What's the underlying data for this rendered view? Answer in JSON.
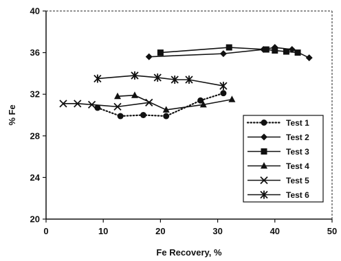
{
  "chart_data": {
    "type": "line",
    "title": "",
    "xlabel": "Fe Recovery, %",
    "ylabel": "% Fe",
    "xlim": [
      0,
      50
    ],
    "ylim": [
      20,
      40
    ],
    "xticks": [
      0,
      10,
      20,
      30,
      40,
      50
    ],
    "yticks": [
      20,
      24,
      28,
      32,
      36,
      40
    ],
    "grid": false,
    "legend_position": "bottom-right",
    "series": [
      {
        "name": "Test 1",
        "marker": "circle",
        "dash": "dotted",
        "color": "#111111",
        "x": [
          9,
          13,
          17,
          21,
          27,
          31
        ],
        "y": [
          30.7,
          29.9,
          30,
          29.9,
          31.4,
          32.1
        ]
      },
      {
        "name": "Test 2",
        "marker": "diamond",
        "dash": "solid",
        "color": "#111111",
        "x": [
          18,
          31,
          38,
          40,
          43,
          46
        ],
        "y": [
          35.6,
          35.9,
          36.3,
          36.5,
          36.3,
          35.5
        ]
      },
      {
        "name": "Test 3",
        "marker": "square",
        "dash": "solid",
        "color": "#111111",
        "x": [
          20,
          32,
          38.5,
          40,
          42,
          44
        ],
        "y": [
          36,
          36.5,
          36.3,
          36.2,
          36.1,
          36
        ]
      },
      {
        "name": "Test 4",
        "marker": "triangle",
        "dash": "solid",
        "color": "#111111",
        "x": [
          12.5,
          15.5,
          21,
          27.5,
          32.5
        ],
        "y": [
          31.8,
          31.9,
          30.5,
          31,
          31.5
        ]
      },
      {
        "name": "Test 5",
        "marker": "x",
        "dash": "solid",
        "color": "#111111",
        "x": [
          3,
          5.5,
          8,
          12.5,
          18
        ],
        "y": [
          31.1,
          31.1,
          31,
          30.8,
          31.2
        ]
      },
      {
        "name": "Test 6",
        "marker": "asterisk",
        "dash": "solid",
        "color": "#111111",
        "x": [
          9,
          15.5,
          19.5,
          22.5,
          25,
          31
        ],
        "y": [
          33.5,
          33.8,
          33.6,
          33.4,
          33.4,
          32.8
        ]
      }
    ]
  }
}
